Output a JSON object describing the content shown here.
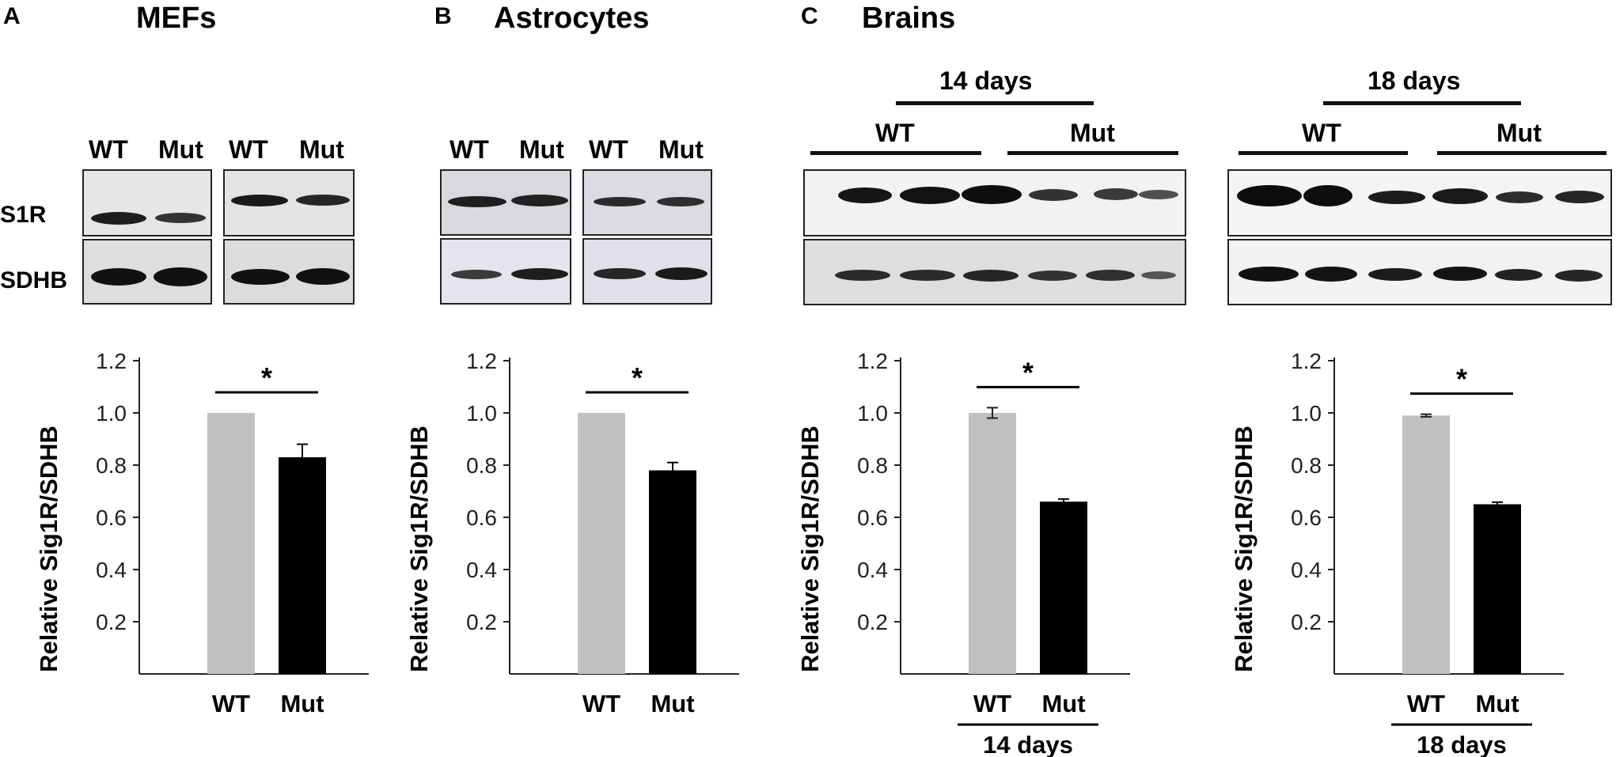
{
  "panels": {
    "A": {
      "letter": "A",
      "title": "MEFs",
      "lanes": [
        "WT",
        "Mut",
        "WT",
        "Mut"
      ],
      "rows": [
        "S1R",
        "SDHB"
      ]
    },
    "B": {
      "letter": "B",
      "title": "Astrocytes",
      "lanes": [
        "WT",
        "Mut",
        "WT",
        "Mut"
      ]
    },
    "C": {
      "letter": "C",
      "title": "Brains",
      "left": {
        "period": "14 days",
        "groups": [
          "WT",
          "Mut"
        ]
      },
      "right": {
        "period": "18 days",
        "groups": [
          "WT",
          "Mut"
        ]
      }
    }
  },
  "colors": {
    "wt_bar": "#c0c0c0",
    "mut_bar": "#000000",
    "axis": "#222222"
  },
  "chart_data": [
    {
      "type": "bar",
      "panel": "A",
      "categories": [
        "WT",
        "Mut"
      ],
      "values": [
        1.0,
        0.83
      ],
      "errors": [
        0,
        0.05
      ],
      "ylabel": "Relative Sig1R/SDHB",
      "ylim": [
        0,
        1.2
      ],
      "yticks": [
        "0.2",
        "0.4",
        "0.6",
        "0.8",
        "1.0",
        "1.2"
      ],
      "significance": "*",
      "xgroup": ""
    },
    {
      "type": "bar",
      "panel": "B",
      "categories": [
        "WT",
        "Mut"
      ],
      "values": [
        1.0,
        0.78
      ],
      "errors": [
        0,
        0.03
      ],
      "ylabel": "Relative Sig1R/SDHB",
      "ylim": [
        0,
        1.2
      ],
      "yticks": [
        "0.2",
        "0.4",
        "0.6",
        "0.8",
        "1.0",
        "1.2"
      ],
      "significance": "*",
      "xgroup": ""
    },
    {
      "type": "bar",
      "panel": "C-14d",
      "categories": [
        "WT",
        "Mut"
      ],
      "values": [
        1.0,
        0.66
      ],
      "errors": [
        0.02,
        0.01
      ],
      "ylabel": "Relative Sig1R/SDHB",
      "ylim": [
        0,
        1.2
      ],
      "yticks": [
        "0.2",
        "0.4",
        "0.6",
        "0.8",
        "1.0",
        "1.2"
      ],
      "significance": "*",
      "xgroup": "14 days"
    },
    {
      "type": "bar",
      "panel": "C-18d",
      "categories": [
        "WT",
        "Mut"
      ],
      "values": [
        0.99,
        0.65
      ],
      "errors": [
        0.005,
        0.008
      ],
      "ylabel": "Relative Sig1R/SDHB",
      "ylim": [
        0,
        1.2
      ],
      "yticks": [
        "0.2",
        "0.4",
        "0.6",
        "0.8",
        "1.0",
        "1.2"
      ],
      "significance": "*",
      "xgroup": "18 days"
    }
  ]
}
